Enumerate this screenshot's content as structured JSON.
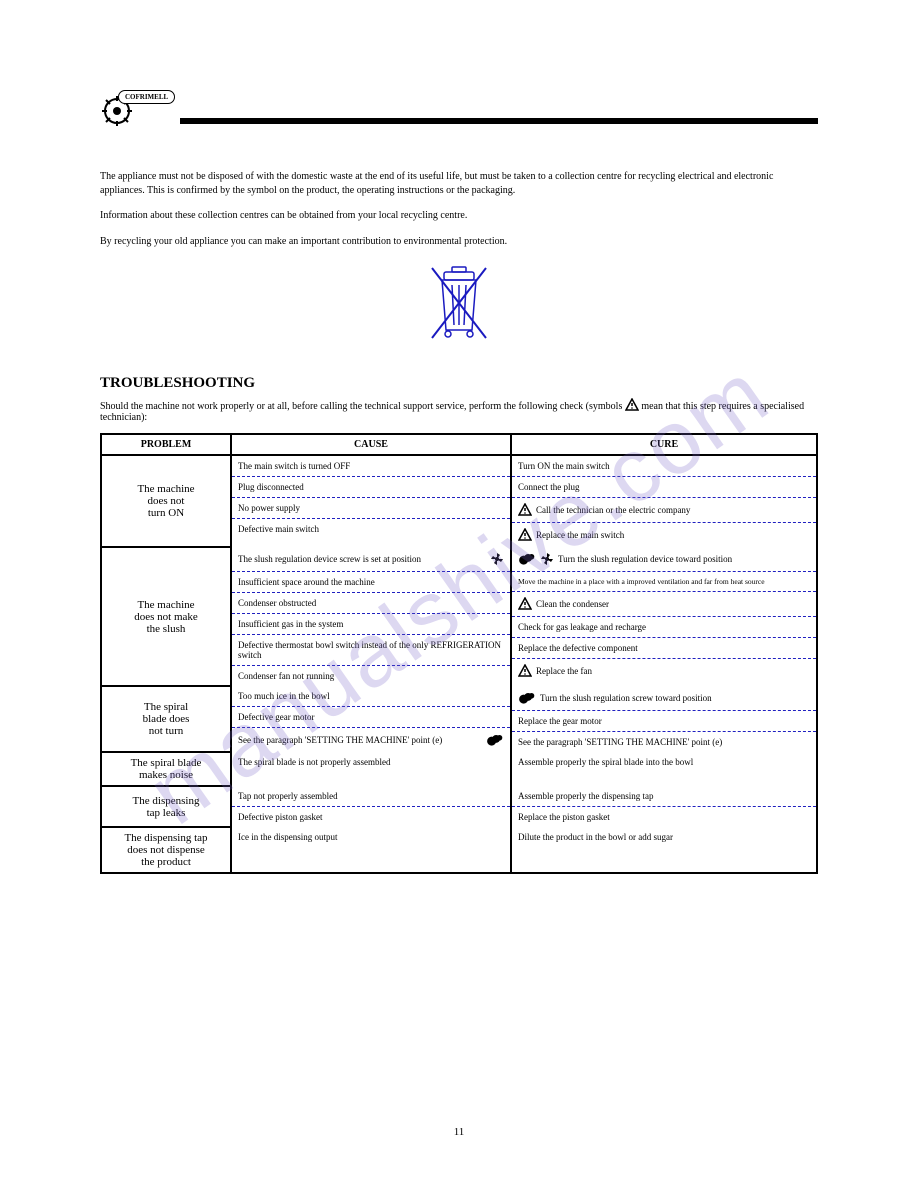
{
  "logo_text": "COFRIMELL",
  "colors": {
    "dash": "#2020c0",
    "bin_stroke": "#1a1ac0",
    "watermark": "rgba(120,100,200,0.25)"
  },
  "intro": {
    "p1": "The appliance must not be disposed of with the domestic waste at the end of its useful life, but must be taken to a collection centre for recycling electrical and electronic appliances. This is confirmed by the symbol on the product, the operating instructions or the packaging.",
    "p2": "Information about these collection centres can be obtained from your local recycling centre.",
    "p3": "By recycling your old appliance you can make an important contribution to environmental protection."
  },
  "troubleshooting": {
    "title": "TROUBLESHOOTING",
    "note_prefix": "Should the machine not work properly or at all, before calling the technical support service, perform the following check (symbols ",
    "note_suffix": " mean that this step requires a specialised technician):",
    "headers": {
      "problem": "PROBLEM",
      "cause": "CAUSE",
      "cure": "CURE"
    },
    "rows": [
      {
        "problem": "The machine\ndoes not\nturn ON",
        "causes": [
          {
            "text": "The main switch is turned OFF",
            "icon": null
          },
          {
            "text": "Plug disconnected",
            "icon": null
          },
          {
            "text": "No power supply",
            "icon": null
          },
          {
            "text": "Defective main switch",
            "icon": null
          }
        ],
        "cures": [
          {
            "text": "Turn ON the main switch",
            "icon": null
          },
          {
            "text": "Connect the plug",
            "icon": null
          },
          {
            "text": "Call the technician or the electric company",
            "icon": "warn"
          },
          {
            "text": "Replace the main switch",
            "icon": "warn"
          }
        ]
      },
      {
        "problem": "The machine\ndoes not make\nthe slush",
        "causes": [
          {
            "text": "The slush regulation device screw is set at position  ",
            "icon": "fan"
          },
          {
            "text": "Insufficient space around the machine",
            "icon": null
          },
          {
            "text": "Condenser obstructed",
            "icon": null
          },
          {
            "text": "Insufficient gas in the system",
            "icon": null
          },
          {
            "text": "Defective thermostat bowl switch instead of the only REFRIGERATION switch",
            "icon": null
          },
          {
            "text": "Condenser fan not running",
            "icon": null
          }
        ],
        "cures": [
          {
            "text": "Turn the slush regulation device toward position  ",
            "icon": "both"
          },
          {
            "text": "Move the machine in a place with a improved ventilation and far from heat source",
            "icon": null,
            "small": true
          },
          {
            "text": "Clean the condenser",
            "icon": "warn"
          },
          {
            "text": "Check for gas leakage and recharge",
            "icon": null
          },
          {
            "text": "Replace the defective component",
            "icon": null
          },
          {
            "text": "Replace the fan",
            "icon": "warn"
          }
        ]
      },
      {
        "problem": "The spiral\nblade does\nnot turn",
        "causes": [
          {
            "text": "Too much ice in the bowl",
            "icon": null
          },
          {
            "text": "Defective gear motor",
            "icon": null
          },
          {
            "text": "See the paragraph 'SETTING THE MACHINE' point (e)  ",
            "icon": "gear"
          }
        ],
        "cures": [
          {
            "text": "Turn the slush regulation screw toward position  ",
            "icon": "gear"
          },
          {
            "text": "Replace the gear motor",
            "icon": null
          },
          {
            "text": "See the paragraph 'SETTING THE MACHINE' point (e)",
            "icon": null
          }
        ]
      },
      {
        "problem": "The spiral blade\nmakes noise",
        "causes": [
          {
            "text": "The spiral blade is not properly assembled",
            "icon": null
          }
        ],
        "cures": [
          {
            "text": "Assemble properly the spiral blade into the bowl",
            "icon": null
          }
        ]
      },
      {
        "problem": "The dispensing\ntap leaks",
        "causes": [
          {
            "text": "Tap not properly assembled",
            "icon": null
          },
          {
            "text": "Defective piston gasket",
            "icon": null
          }
        ],
        "cures": [
          {
            "text": "Assemble properly the dispensing tap",
            "icon": null
          },
          {
            "text": "Replace the piston gasket",
            "icon": null
          }
        ]
      },
      {
        "problem": "The dispensing tap\ndoes not dispense\nthe product",
        "causes": [
          {
            "text": "Ice in the dispensing output",
            "icon": null
          }
        ],
        "cures": [
          {
            "text": "Dilute the product in the bowl or add sugar",
            "icon": null
          }
        ]
      }
    ]
  },
  "watermark": "manualshive.com",
  "page_number": "11"
}
